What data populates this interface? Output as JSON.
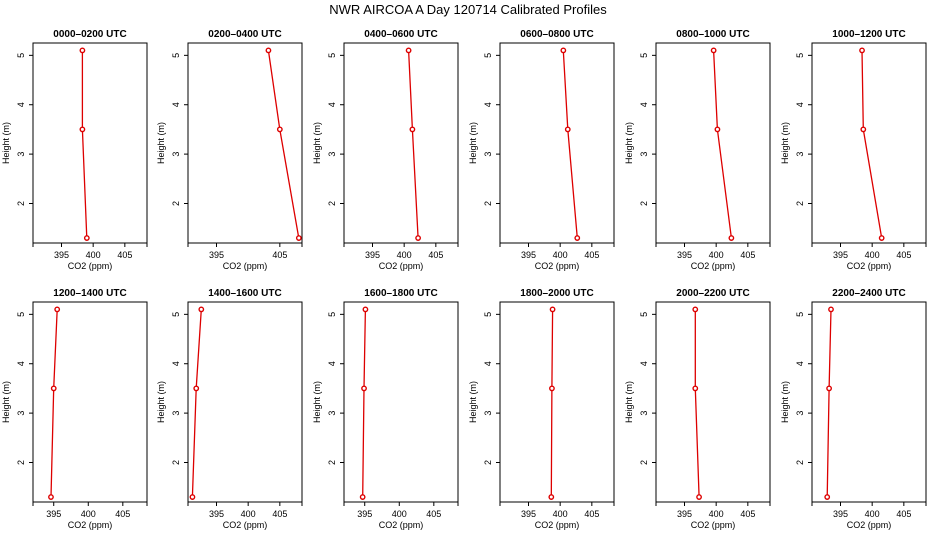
{
  "figure": {
    "title": "NWR AIRCOA A  Day 120714  Calibrated Profiles",
    "series_color": "#dd0000"
  },
  "chart_data": [
    {
      "type": "line",
      "title": "0000–0200 UTC",
      "xlabel": "CO2 (ppm)",
      "ylabel": "Height (m)",
      "xlim": [
        390.5,
        408.5
      ],
      "ylim": [
        1.2,
        5.25
      ],
      "xticks": [
        "395",
        "400",
        "405"
      ],
      "yticks": [
        "2",
        "3",
        "4",
        "5"
      ],
      "x": [
        398.3,
        398.3,
        399.0
      ],
      "y": [
        5.1,
        3.5,
        1.3
      ]
    },
    {
      "type": "line",
      "title": "0200–0400 UTC",
      "xlabel": "CO2 (ppm)",
      "ylabel": "Height (m)",
      "xlim": [
        390.5,
        408.5
      ],
      "ylim": [
        1.2,
        5.25
      ],
      "xticks": [
        "395",
        "405"
      ],
      "yticks": [
        "2",
        "3",
        "4",
        "5"
      ],
      "x": [
        403.2,
        405.0,
        408.0
      ],
      "y": [
        5.1,
        3.5,
        1.3
      ]
    },
    {
      "type": "line",
      "title": "0400–0600 UTC",
      "xlabel": "CO2 (ppm)",
      "ylabel": "Height (m)",
      "xlim": [
        390.5,
        408.5
      ],
      "ylim": [
        1.2,
        5.25
      ],
      "xticks": [
        "395",
        "400",
        "405"
      ],
      "yticks": [
        "2",
        "3",
        "4",
        "5"
      ],
      "x": [
        400.7,
        401.3,
        402.2
      ],
      "y": [
        5.1,
        3.5,
        1.3
      ]
    },
    {
      "type": "line",
      "title": "0600–0800 UTC",
      "xlabel": "CO2 (ppm)",
      "ylabel": "Height (m)",
      "xlim": [
        390.5,
        408.5
      ],
      "ylim": [
        1.2,
        5.25
      ],
      "xticks": [
        "395",
        "400",
        "405"
      ],
      "yticks": [
        "2",
        "3",
        "4",
        "5"
      ],
      "x": [
        400.5,
        401.2,
        402.7
      ],
      "y": [
        5.1,
        3.5,
        1.3
      ]
    },
    {
      "type": "line",
      "title": "0800–1000 UTC",
      "xlabel": "CO2 (ppm)",
      "ylabel": "Height (m)",
      "xlim": [
        390.5,
        408.5
      ],
      "ylim": [
        1.2,
        5.25
      ],
      "xticks": [
        "395",
        "400",
        "405"
      ],
      "yticks": [
        "2",
        "3",
        "4",
        "5"
      ],
      "x": [
        399.6,
        400.2,
        402.4
      ],
      "y": [
        5.1,
        3.5,
        1.3
      ]
    },
    {
      "type": "line",
      "title": "1000–1200 UTC",
      "xlabel": "CO2 (ppm)",
      "ylabel": "Height (m)",
      "xlim": [
        390.5,
        408.5
      ],
      "ylim": [
        1.2,
        5.25
      ],
      "xticks": [
        "395",
        "400",
        "405"
      ],
      "yticks": [
        "2",
        "3",
        "4",
        "5"
      ],
      "x": [
        398.4,
        398.6,
        401.5
      ],
      "y": [
        5.1,
        3.5,
        1.3
      ]
    },
    {
      "type": "line",
      "title": "1200–1400 UTC",
      "xlabel": "CO2 (ppm)",
      "ylabel": "Height (m)",
      "xlim": [
        392.0,
        408.5
      ],
      "ylim": [
        1.2,
        5.25
      ],
      "xticks": [
        "395",
        "400",
        "405"
      ],
      "yticks": [
        "2",
        "3",
        "4",
        "5"
      ],
      "x": [
        395.5,
        395.0,
        394.6
      ],
      "y": [
        5.1,
        3.5,
        1.3
      ]
    },
    {
      "type": "line",
      "title": "1400–1600 UTC",
      "xlabel": "CO2 (ppm)",
      "ylabel": "Height (m)",
      "xlim": [
        390.5,
        408.5
      ],
      "ylim": [
        1.2,
        5.25
      ],
      "xticks": [
        "395",
        "400",
        "405"
      ],
      "yticks": [
        "2",
        "3",
        "4",
        "5"
      ],
      "x": [
        392.6,
        391.8,
        391.2
      ],
      "y": [
        5.1,
        3.5,
        1.3
      ]
    },
    {
      "type": "line",
      "title": "1600–1800 UTC",
      "xlabel": "CO2 (ppm)",
      "ylabel": "Height (m)",
      "xlim": [
        392.0,
        408.5
      ],
      "ylim": [
        1.2,
        5.25
      ],
      "xticks": [
        "395",
        "400",
        "405"
      ],
      "yticks": [
        "2",
        "3",
        "4",
        "5"
      ],
      "x": [
        395.1,
        394.9,
        394.7
      ],
      "y": [
        5.1,
        3.5,
        1.3
      ]
    },
    {
      "type": "line",
      "title": "1800–2000 UTC",
      "xlabel": "CO2 (ppm)",
      "ylabel": "Height (m)",
      "xlim": [
        390.5,
        408.5
      ],
      "ylim": [
        1.2,
        5.25
      ],
      "xticks": [
        "395",
        "400",
        "405"
      ],
      "yticks": [
        "2",
        "3",
        "4",
        "5"
      ],
      "x": [
        398.8,
        398.7,
        398.6
      ],
      "y": [
        5.1,
        3.5,
        1.3
      ]
    },
    {
      "type": "line",
      "title": "2000–2200 UTC",
      "xlabel": "CO2 (ppm)",
      "ylabel": "Height (m)",
      "xlim": [
        390.5,
        408.5
      ],
      "ylim": [
        1.2,
        5.25
      ],
      "xticks": [
        "395",
        "400",
        "405"
      ],
      "yticks": [
        "2",
        "3",
        "4",
        "5"
      ],
      "x": [
        396.7,
        396.7,
        397.3
      ],
      "y": [
        5.1,
        3.5,
        1.3
      ]
    },
    {
      "type": "line",
      "title": "2200–2400 UTC",
      "xlabel": "CO2 (ppm)",
      "ylabel": "Height (m)",
      "xlim": [
        390.5,
        408.5
      ],
      "ylim": [
        1.2,
        5.25
      ],
      "xticks": [
        "395",
        "400",
        "405"
      ],
      "yticks": [
        "2",
        "3",
        "4",
        "5"
      ],
      "x": [
        393.5,
        393.2,
        392.9
      ],
      "y": [
        5.1,
        3.5,
        1.3
      ]
    }
  ]
}
